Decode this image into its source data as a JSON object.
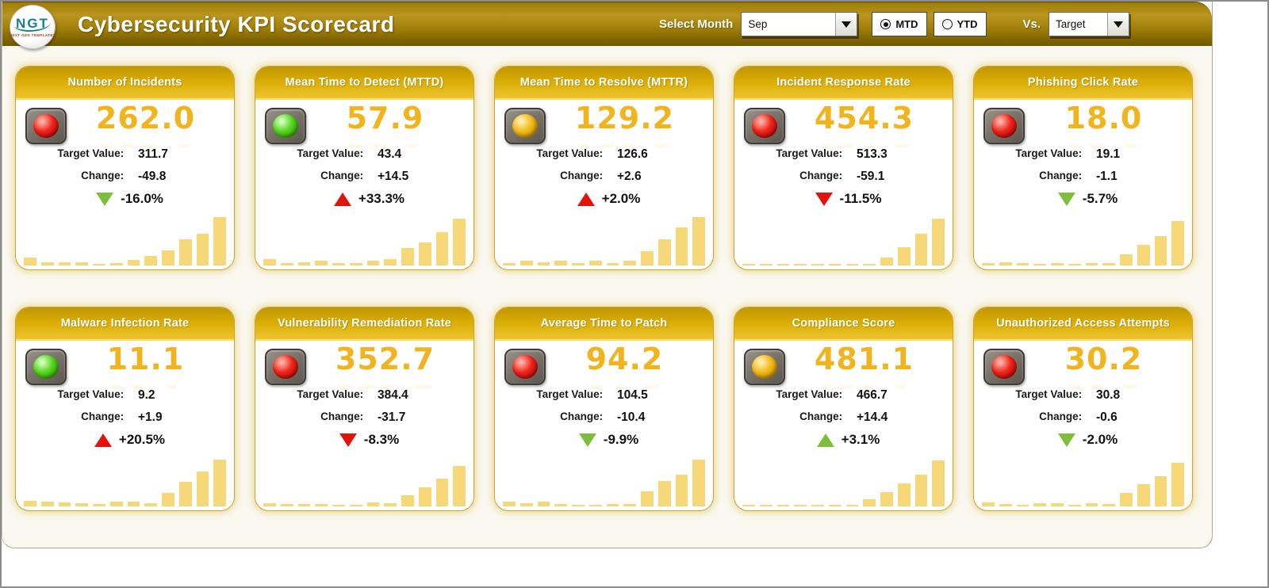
{
  "header": {
    "logo": {
      "text": "NGT",
      "subtext": "NEXT GEN TEMPLATES"
    },
    "title": "Cybersecurity KPI Scorecard",
    "select_month_label": "Select Month",
    "month_value": "Sep",
    "period": [
      {
        "label": "MTD",
        "selected": true
      },
      {
        "label": "YTD",
        "selected": false
      }
    ],
    "vs_label": "Vs.",
    "vs_value": "Target"
  },
  "card_labels": {
    "target": "Target Value:",
    "change": "Change:"
  },
  "colors": {
    "header_gold_top": "#b9951e",
    "header_gold_bottom": "#6f5700",
    "card_header_gold": "#d8ab05",
    "kpi_value_gold": "#f2b41e",
    "spark_bar": "#f6d878",
    "panel_bg": "#faf8f0",
    "arrow_red": "#e3120b",
    "arrow_green": "#7dbe3c",
    "light_red": "#f0231a",
    "light_green": "#54d51e",
    "light_amber": "#f2b918"
  },
  "cards": [
    {
      "name": "Number of Incidents",
      "value": "262.0",
      "target": "311.7",
      "change": "-49.8",
      "pct": "-16.0%",
      "trend": "down",
      "trend_color": "tri-green",
      "light": "red",
      "spark": [
        16,
        6,
        7,
        6,
        3,
        4,
        11,
        19,
        29,
        52,
        62,
        95
      ]
    },
    {
      "name": "Mean Time to Detect (MTTD)",
      "value": "57.9",
      "target": "43.4",
      "change": "+14.5",
      "pct": "+33.3%",
      "trend": "up",
      "trend_color": "tri-red",
      "light": "green",
      "spark": [
        12,
        5,
        7,
        10,
        4,
        4,
        10,
        13,
        34,
        46,
        66,
        92
      ]
    },
    {
      "name": "Mean Time to Resolve (MTTR)",
      "value": "129.2",
      "target": "126.6",
      "change": "+2.6",
      "pct": "+2.0%",
      "trend": "up",
      "trend_color": "tri-red",
      "light": "amber",
      "spark": [
        4,
        9,
        7,
        9,
        4,
        9,
        5,
        9,
        28,
        52,
        75,
        95
      ]
    },
    {
      "name": "Incident Response Rate",
      "value": "454.3",
      "target": "513.3",
      "change": "-59.1",
      "pct": "-11.5%",
      "trend": "down",
      "trend_color": "tri-red",
      "light": "red",
      "spark": [
        3,
        3,
        3,
        3,
        3,
        3,
        3,
        3,
        16,
        36,
        62,
        92
      ]
    },
    {
      "name": "Phishing Click Rate",
      "value": "18.0",
      "target": "19.1",
      "change": "-1.1",
      "pct": "-5.7%",
      "trend": "down",
      "trend_color": "tri-green",
      "light": "red",
      "spark": [
        5,
        6,
        4,
        3,
        5,
        3,
        4,
        5,
        22,
        40,
        58,
        88
      ]
    },
    {
      "name": "Malware Infection Rate",
      "value": "11.1",
      "target": "9.2",
      "change": "+1.9",
      "pct": "+20.5%",
      "trend": "up",
      "trend_color": "tri-red",
      "light": "green",
      "spark": [
        11,
        9,
        8,
        6,
        4,
        9,
        9,
        7,
        26,
        48,
        68,
        92
      ]
    },
    {
      "name": "Vulnerability Remediation Rate",
      "value": "352.7",
      "target": "384.4",
      "change": "-31.7",
      "pct": "-8.3%",
      "trend": "down",
      "trend_color": "tri-red",
      "light": "red",
      "spark": [
        7,
        5,
        5,
        5,
        3,
        3,
        8,
        6,
        22,
        38,
        55,
        80
      ]
    },
    {
      "name": "Average Time to Patch",
      "value": "94.2",
      "target": "104.5",
      "change": "-10.4",
      "pct": "-9.9%",
      "trend": "down",
      "trend_color": "tri-green",
      "light": "red",
      "spark": [
        9,
        7,
        9,
        5,
        3,
        3,
        5,
        4,
        30,
        50,
        62,
        92
      ]
    },
    {
      "name": "Compliance Score",
      "value": "481.1",
      "target": "466.7",
      "change": "+14.4",
      "pct": "+3.1%",
      "trend": "up",
      "trend_color": "tri-green",
      "light": "amber",
      "spark": [
        3,
        3,
        3,
        3,
        3,
        3,
        3,
        14,
        28,
        46,
        62,
        90
      ]
    },
    {
      "name": "Unauthorized Access Attempts",
      "value": "30.2",
      "target": "30.8",
      "change": "-0.6",
      "pct": "-2.0%",
      "trend": "down",
      "trend_color": "tri-green",
      "light": "red",
      "spark": [
        8,
        4,
        3,
        7,
        6,
        3,
        6,
        4,
        26,
        44,
        60,
        86
      ]
    }
  ],
  "chart_data": {
    "type": "bar",
    "note": "per-card sparkline relative heights (percent of plot height), see cards[].spark",
    "series": "cards[].spark"
  }
}
